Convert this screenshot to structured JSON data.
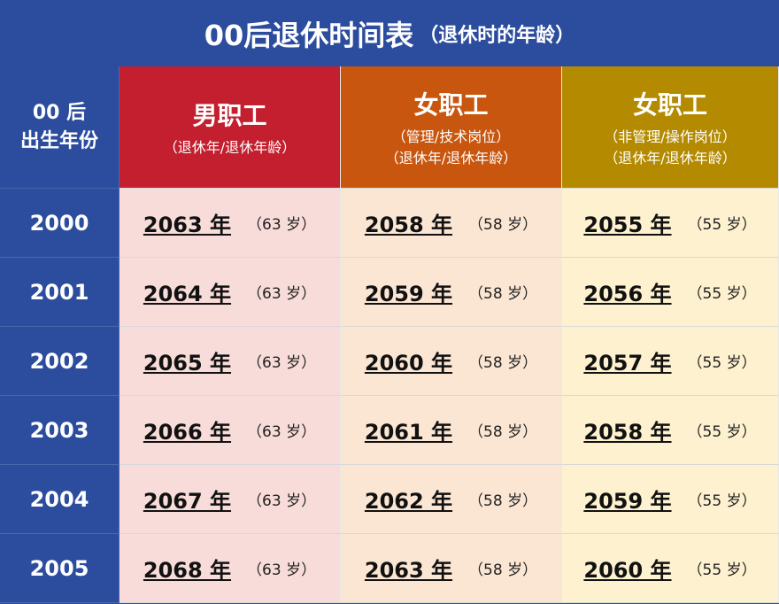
{
  "title": "00后退休时间表",
  "subtitle": "（退休时的年龄）",
  "table": {
    "header": [
      {
        "lines": [
          "00 后",
          "出生年份"
        ]
      },
      {
        "title": "男职工",
        "notes": [
          "（退休年/退休年龄）"
        ]
      },
      {
        "title": "女职工",
        "notes": [
          "（管理/技术岗位）",
          "（退休年/退休年龄）"
        ]
      },
      {
        "title": "女职工",
        "notes": [
          "（非管理/操作岗位）",
          "（退休年/退休年龄）"
        ]
      }
    ],
    "rows": [
      [
        "2000",
        {
          "year": "2063 年",
          "age": "（63 岁）"
        },
        {
          "year": "2058 年",
          "age": "（58 岁）"
        },
        {
          "year": "2055 年",
          "age": "（55 岁）"
        }
      ],
      [
        "2001",
        {
          "year": "2064 年",
          "age": "（63 岁）"
        },
        {
          "year": "2059 年",
          "age": "（58 岁）"
        },
        {
          "year": "2056 年",
          "age": "（55 岁）"
        }
      ],
      [
        "2002",
        {
          "year": "2065 年",
          "age": "（63 岁）"
        },
        {
          "year": "2060 年",
          "age": "（58 岁）"
        },
        {
          "year": "2057 年",
          "age": "（55 岁）"
        }
      ],
      [
        "2003",
        {
          "year": "2066 年",
          "age": "（63 岁）"
        },
        {
          "year": "2061 年",
          "age": "（58 岁）"
        },
        {
          "year": "2058 年",
          "age": "（55 岁）"
        }
      ],
      [
        "2004",
        {
          "year": "2067 年",
          "age": "（63 岁）"
        },
        {
          "year": "2062 年",
          "age": "（58 岁）"
        },
        {
          "year": "2059 年",
          "age": "（55 岁）"
        }
      ],
      [
        "2005",
        {
          "year": "2068 年",
          "age": "（63 岁）"
        },
        {
          "year": "2063 年",
          "age": "（58 岁）"
        },
        {
          "year": "2060 年",
          "age": "（55 岁）"
        }
      ]
    ]
  }
}
